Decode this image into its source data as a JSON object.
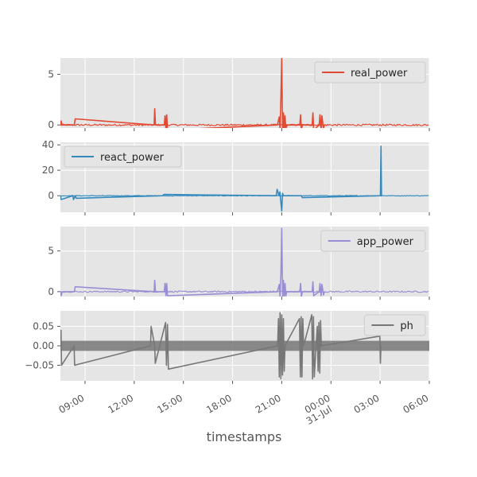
{
  "chart_data": {
    "type": "line",
    "xlabel": "timestamps",
    "x_range": [
      "2024-07-30 07:30",
      "2024-07-31 06:00"
    ],
    "x_ticks": [
      {
        "t": "2024-07-30 09:00",
        "label": "09:00",
        "sub": ""
      },
      {
        "t": "2024-07-30 12:00",
        "label": "12:00",
        "sub": ""
      },
      {
        "t": "2024-07-30 15:00",
        "label": "15:00",
        "sub": ""
      },
      {
        "t": "2024-07-30 18:00",
        "label": "18:00",
        "sub": ""
      },
      {
        "t": "2024-07-30 21:00",
        "label": "21:00",
        "sub": ""
      },
      {
        "t": "2024-07-31 00:00",
        "label": "00:00",
        "sub": "31-Jul"
      },
      {
        "t": "2024-07-31 03:00",
        "label": "03:00",
        "sub": ""
      },
      {
        "t": "2024-07-31 06:00",
        "label": "06:00",
        "sub": ""
      }
    ],
    "grid": true,
    "legend_position": "upper right",
    "panels": [
      {
        "series_name": "real_power",
        "color": "#E24A33",
        "ylim": [
          -0.3,
          6.6
        ],
        "yticks": [
          0,
          5
        ],
        "ytick_labels": [
          "0",
          "5"
        ],
        "legend_loc": "top-right",
        "baseline": 0,
        "noise": 0.08,
        "x": [
          "2024-07-30 07:30",
          "2024-07-30 07:33",
          "2024-07-30 07:36",
          "2024-07-30 08:21",
          "2024-07-30 08:24",
          "2024-07-30 13:13",
          "2024-07-30 13:15",
          "2024-07-30 13:18",
          "2024-07-30 13:50",
          "2024-07-30 13:53",
          "2024-07-30 13:56",
          "2024-07-30 13:59",
          "2024-07-30 14:02",
          "2024-07-30 20:44",
          "2024-07-30 20:51",
          "2024-07-30 20:54",
          "2024-07-30 20:57",
          "2024-07-30 21:00",
          "2024-07-30 21:03",
          "2024-07-30 21:06",
          "2024-07-30 21:09",
          "2024-07-30 21:12",
          "2024-07-30 21:15",
          "2024-07-30 21:18",
          "2024-07-30 21:21",
          "2024-07-30 22:06",
          "2024-07-30 22:09",
          "2024-07-30 22:12",
          "2024-07-30 22:15",
          "2024-07-30 22:51",
          "2024-07-30 22:54",
          "2024-07-30 22:57",
          "2024-07-30 23:17",
          "2024-07-30 23:20",
          "2024-07-30 23:24",
          "2024-07-30 23:27",
          "2024-07-30 23:33",
          "2024-07-30 23:36"
        ],
        "y": [
          0,
          0.4,
          0,
          0,
          0.6,
          0,
          1.6,
          0,
          0,
          0.9,
          -0.6,
          1.0,
          -0.5,
          0,
          0.8,
          -0.6,
          2.9,
          6.6,
          -0.7,
          1.2,
          -0.8,
          0.9,
          -0.5,
          0,
          0,
          0,
          1.0,
          -0.6,
          0,
          0,
          1.2,
          -0.5,
          0,
          1.0,
          -0.5,
          0.9,
          -0.4,
          0
        ]
      },
      {
        "series_name": "react_power",
        "color": "#348ABD",
        "ylim": [
          -13,
          42
        ],
        "yticks": [
          0,
          20,
          40
        ],
        "ytick_labels": [
          "0",
          "20",
          "40"
        ],
        "legend_loc": "top-left",
        "baseline": 0,
        "noise": 0.25,
        "x": [
          "2024-07-30 07:30",
          "2024-07-30 07:33",
          "2024-07-30 08:15",
          "2024-07-30 08:18",
          "2024-07-30 08:25",
          "2024-07-30 08:28",
          "2024-07-30 13:45",
          "2024-07-30 13:48",
          "2024-07-30 20:40",
          "2024-07-30 20:43",
          "2024-07-30 20:50",
          "2024-07-30 20:53",
          "2024-07-30 21:00",
          "2024-07-30 21:03",
          "2024-07-30 21:06",
          "2024-07-30 22:12",
          "2024-07-30 22:15",
          "2024-07-31 03:01",
          "2024-07-31 03:03",
          "2024-07-31 03:05",
          "2024-07-31 03:07"
        ],
        "y": [
          0,
          -3,
          0,
          -3,
          0,
          -2,
          0,
          1,
          0,
          5,
          0,
          3,
          -12,
          2,
          0,
          0,
          -1.5,
          0,
          39,
          0,
          0
        ]
      },
      {
        "series_name": "app_power",
        "color": "#988ED5",
        "ylim": [
          -0.6,
          8.0
        ],
        "yticks": [
          0,
          5
        ],
        "ytick_labels": [
          "0",
          "5"
        ],
        "legend_loc": "top-right",
        "baseline": 0,
        "noise": 0.08,
        "x": [
          "2024-07-30 07:30",
          "2024-07-30 07:33",
          "2024-07-30 07:36",
          "2024-07-30 08:21",
          "2024-07-30 08:24",
          "2024-07-30 13:13",
          "2024-07-30 13:15",
          "2024-07-30 13:18",
          "2024-07-30 13:50",
          "2024-07-30 13:53",
          "2024-07-30 13:56",
          "2024-07-30 13:59",
          "2024-07-30 14:02",
          "2024-07-30 20:44",
          "2024-07-30 20:51",
          "2024-07-30 20:54",
          "2024-07-30 20:57",
          "2024-07-30 21:00",
          "2024-07-30 21:03",
          "2024-07-30 21:06",
          "2024-07-30 21:09",
          "2024-07-30 21:12",
          "2024-07-30 21:15",
          "2024-07-30 21:18",
          "2024-07-30 21:21",
          "2024-07-30 22:06",
          "2024-07-30 22:09",
          "2024-07-30 22:12",
          "2024-07-30 22:15",
          "2024-07-30 22:51",
          "2024-07-30 22:54",
          "2024-07-30 22:57",
          "2024-07-30 23:17",
          "2024-07-30 23:20",
          "2024-07-30 23:24",
          "2024-07-30 23:27",
          "2024-07-30 23:33",
          "2024-07-30 23:36"
        ],
        "y": [
          0,
          -0.5,
          0,
          0,
          0.6,
          0,
          1.4,
          0,
          0,
          1.0,
          -0.5,
          1.0,
          -0.5,
          0,
          0.9,
          -0.7,
          2.4,
          7.8,
          -0.7,
          1.4,
          -0.8,
          1.0,
          -0.5,
          0,
          0,
          0,
          1.0,
          -0.6,
          0,
          0,
          1.2,
          -0.5,
          0,
          1.0,
          -0.5,
          0.9,
          -0.4,
          0
        ]
      },
      {
        "series_name": "ph",
        "color": "#777777",
        "ylim": [
          -0.09,
          0.09
        ],
        "yticks": [
          -0.05,
          0,
          0.05
        ],
        "ytick_labels": [
          "−0.05",
          "0.00",
          "0.05"
        ],
        "legend_loc": "top-right",
        "baseline": 0,
        "band": 0.013,
        "x": [
          "2024-07-30 07:30",
          "2024-07-30 07:32",
          "2024-07-30 07:34",
          "2024-07-30 08:20",
          "2024-07-30 08:22",
          "2024-07-30 13:00",
          "2024-07-30 13:02",
          "2024-07-30 13:15",
          "2024-07-30 13:17",
          "2024-07-30 13:55",
          "2024-07-30 13:58",
          "2024-07-30 14:02",
          "2024-07-30 14:05",
          "2024-07-30 20:45",
          "2024-07-30 20:48",
          "2024-07-30 20:51",
          "2024-07-30 20:54",
          "2024-07-30 20:57",
          "2024-07-30 21:00",
          "2024-07-30 21:03",
          "2024-07-30 21:06",
          "2024-07-30 21:09",
          "2024-07-30 21:12",
          "2024-07-30 22:05",
          "2024-07-30 22:08",
          "2024-07-30 22:11",
          "2024-07-30 22:14",
          "2024-07-30 22:17",
          "2024-07-30 22:20",
          "2024-07-30 22:50",
          "2024-07-30 22:53",
          "2024-07-30 22:56",
          "2024-07-30 22:59",
          "2024-07-30 23:10",
          "2024-07-30 23:13",
          "2024-07-30 23:16",
          "2024-07-30 23:19",
          "2024-07-30 23:22",
          "2024-07-30 23:25",
          "2024-07-31 02:59",
          "2024-07-31 03:01",
          "2024-07-31 03:03"
        ],
        "y": [
          0,
          0.04,
          -0.05,
          0,
          -0.05,
          0,
          0.05,
          0,
          -0.045,
          0.06,
          -0.05,
          0.055,
          -0.06,
          0,
          0.07,
          -0.08,
          0.085,
          -0.085,
          0.08,
          -0.075,
          0.07,
          -0.065,
          0,
          0.07,
          -0.08,
          0.075,
          -0.08,
          0.07,
          0,
          0.08,
          -0.085,
          0.075,
          -0.08,
          0.05,
          -0.065,
          0.06,
          -0.07,
          0.065,
          0,
          0.025,
          -0.045,
          0
        ]
      }
    ]
  }
}
